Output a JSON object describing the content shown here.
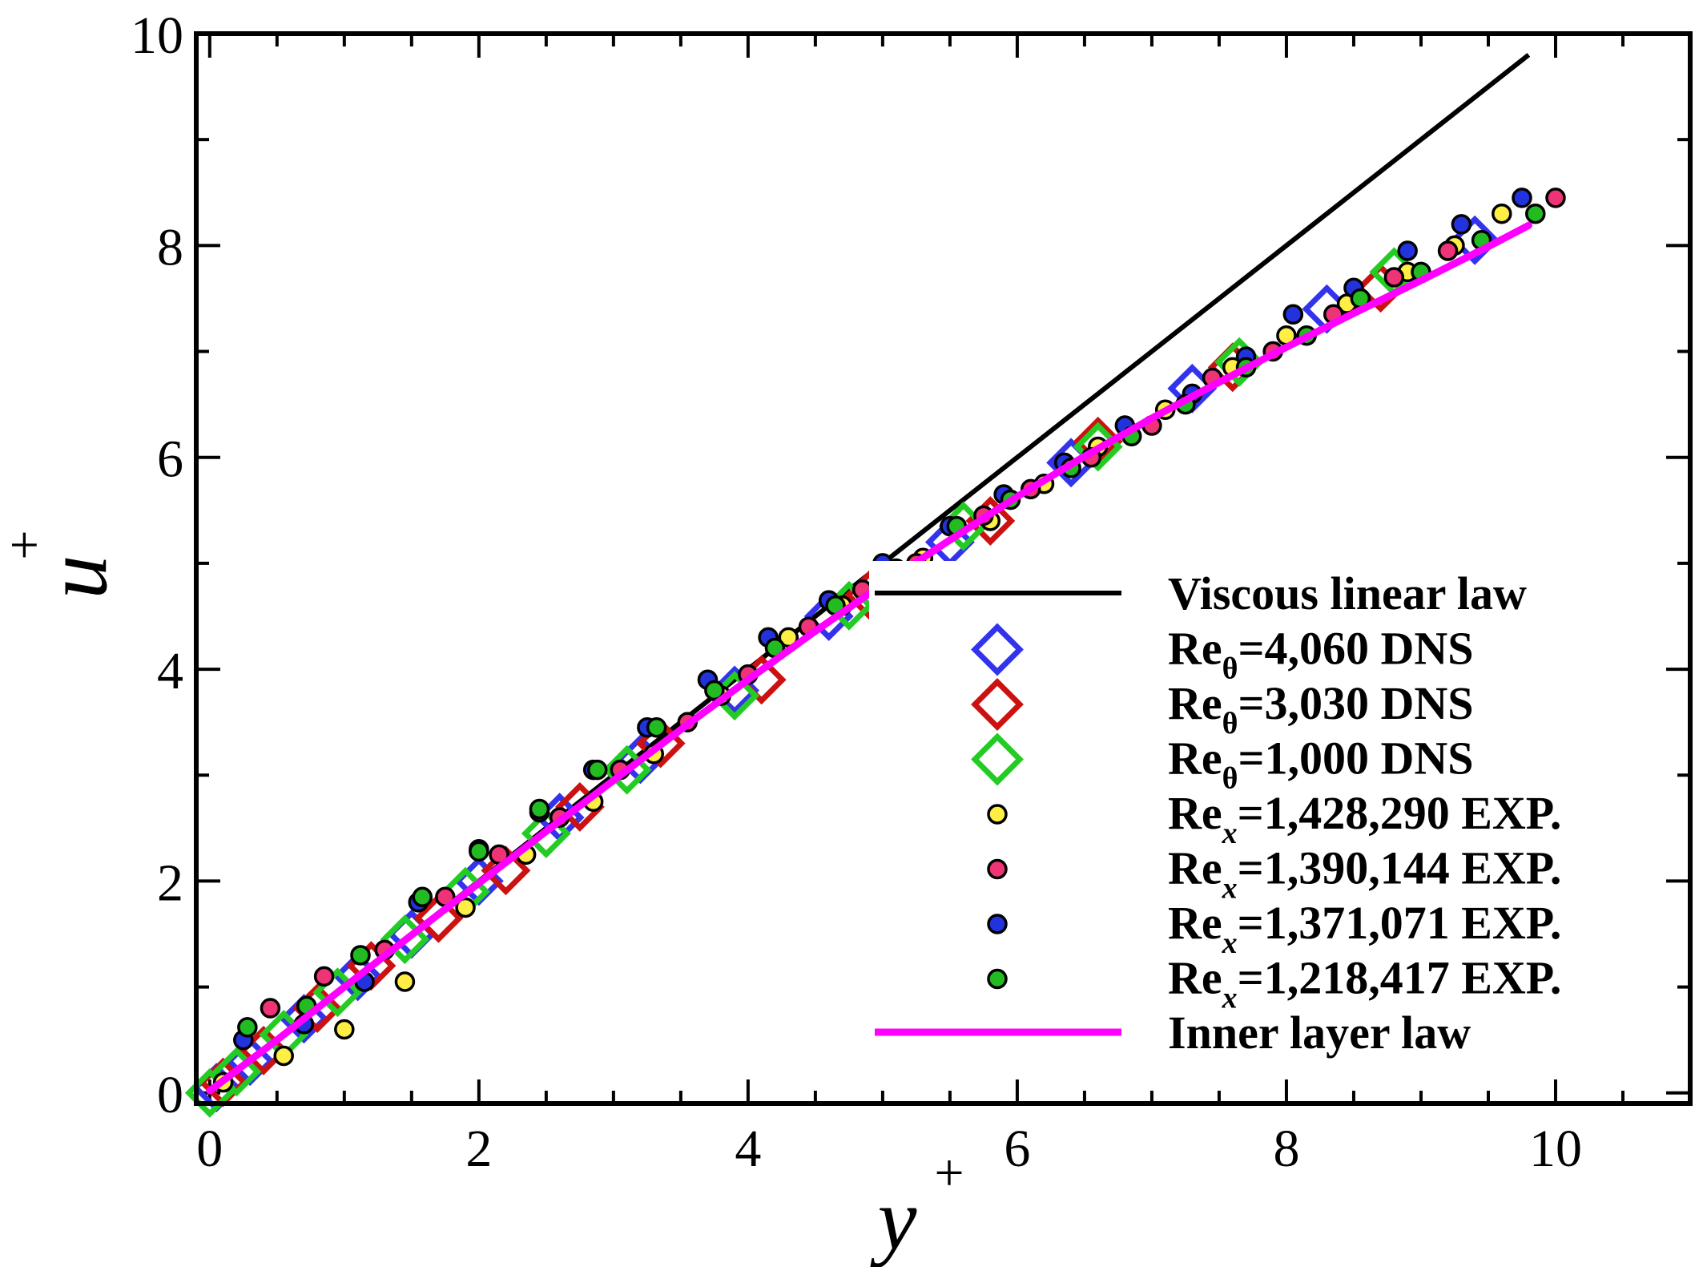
{
  "chart_data": {
    "type": "scatter",
    "xlabel": "y",
    "xlabel_sup": "+",
    "ylabel": "u",
    "ylabel_sup": "+",
    "xlim": [
      -0.1,
      11
    ],
    "ylim": [
      -0.1,
      10
    ],
    "x_ticks": [
      0,
      2,
      4,
      6,
      8,
      10
    ],
    "x_tick_labels": [
      "0",
      "2",
      "4",
      "6",
      "8",
      "10"
    ],
    "y_ticks": [
      0,
      2,
      4,
      6,
      8,
      10
    ],
    "y_tick_labels": [
      "0",
      "2",
      "4",
      "6",
      "8",
      "10"
    ],
    "x_minor_step": 0.5,
    "y_minor_step": 1,
    "legend_position": "lower-right",
    "series": [
      {
        "name": "Viscous linear law",
        "kind": "line",
        "color": "#000000",
        "x": [
          0,
          9.8
        ],
        "y": [
          0,
          9.8
        ]
      },
      {
        "name": "Inner layer law",
        "kind": "line",
        "color": "#ff00ff",
        "x": [
          0,
          0.5,
          1,
          1.5,
          2,
          2.5,
          3,
          3.5,
          4,
          4.5,
          5,
          5.5,
          6,
          6.5,
          7,
          7.5,
          8,
          8.5,
          9,
          9.5,
          9.8
        ],
        "y": [
          0.02,
          0.5,
          1.0,
          1.49,
          1.98,
          2.47,
          2.95,
          3.43,
          3.9,
          4.36,
          4.8,
          5.22,
          5.63,
          6.01,
          6.37,
          6.71,
          7.04,
          7.36,
          7.67,
          7.99,
          8.19
        ]
      },
      {
        "name": "Reθ=4,060 DNS",
        "name_parts": [
          "Re",
          "θ",
          "=4,060 DNS"
        ],
        "kind": "diamond",
        "color": "#3333ee",
        "x": [
          0.05,
          0.3,
          0.7,
          1.1,
          1.5,
          2.0,
          2.6,
          3.2,
          3.9,
          4.6,
          5.5,
          6.4,
          7.3,
          8.3,
          9.4
        ],
        "y": [
          0.05,
          0.3,
          0.7,
          1.1,
          1.5,
          2.0,
          2.6,
          3.15,
          3.8,
          4.5,
          5.2,
          5.95,
          6.65,
          7.4,
          8.05
        ]
      },
      {
        "name": "Reθ=3,030 DNS",
        "name_parts": [
          "Re",
          "θ",
          "=3,030 DNS"
        ],
        "kind": "diamond",
        "color": "#cc1111",
        "x": [
          0.1,
          0.4,
          0.8,
          1.2,
          1.7,
          2.2,
          2.75,
          3.35,
          4.1,
          4.9,
          5.8,
          6.6,
          7.6,
          8.7
        ],
        "y": [
          0.1,
          0.4,
          0.8,
          1.2,
          1.65,
          2.1,
          2.7,
          3.3,
          3.9,
          4.7,
          5.4,
          6.15,
          6.85,
          7.6
        ]
      },
      {
        "name": "Reθ=1,000 DNS",
        "name_parts": [
          "Re",
          "θ",
          "=1,000 DNS"
        ],
        "kind": "diamond",
        "color": "#22cc22",
        "x": [
          0.0,
          0.2,
          0.55,
          0.95,
          1.45,
          1.9,
          2.5,
          3.1,
          3.9,
          4.75,
          5.6,
          6.6,
          7.65,
          8.8
        ],
        "y": [
          0.0,
          0.2,
          0.55,
          0.95,
          1.45,
          1.9,
          2.45,
          3.05,
          3.75,
          4.6,
          5.35,
          6.1,
          6.9,
          7.75
        ]
      },
      {
        "name": "Rex=1,428,290 EXP.",
        "name_parts": [
          "Re",
          "x",
          "=1,428,290 EXP."
        ],
        "kind": "dot",
        "color": "#ffee44",
        "x": [
          0.1,
          0.55,
          1.0,
          1.45,
          1.9,
          2.35,
          2.85,
          3.3,
          3.8,
          4.3,
          4.7,
          5.3,
          5.8,
          6.2,
          6.6,
          7.1,
          7.6,
          8.0,
          8.45,
          8.9,
          9.25,
          9.6
        ],
        "y": [
          0.1,
          0.35,
          0.6,
          1.05,
          1.75,
          2.25,
          2.75,
          3.2,
          3.75,
          4.3,
          4.6,
          5.05,
          5.4,
          5.75,
          6.1,
          6.45,
          6.85,
          7.15,
          7.45,
          7.75,
          8.0,
          8.3
        ]
      },
      {
        "name": "Rex=1,390,144 EXP.",
        "name_parts": [
          "Re",
          "x",
          "=1,390,144 EXP."
        ],
        "kind": "dot",
        "color": "#ee3377",
        "x": [
          0.45,
          0.85,
          1.3,
          1.75,
          2.15,
          2.6,
          3.05,
          3.55,
          4.0,
          4.45,
          4.85,
          5.25,
          5.75,
          6.1,
          6.55,
          7.0,
          7.45,
          7.9,
          8.35,
          8.8,
          9.2,
          10.0
        ],
        "y": [
          0.8,
          1.1,
          1.35,
          1.85,
          2.25,
          2.6,
          3.05,
          3.5,
          3.95,
          4.4,
          4.75,
          5.0,
          5.45,
          5.7,
          6.0,
          6.3,
          6.75,
          7.0,
          7.35,
          7.7,
          7.95,
          8.45
        ]
      },
      {
        "name": "Rex=1,371,071 EXP.",
        "name_parts": [
          "Re",
          "x",
          "=1,371,071 EXP."
        ],
        "kind": "dot",
        "color": "#2233dd",
        "x": [
          0.25,
          0.7,
          1.15,
          1.55,
          2.0,
          2.45,
          2.85,
          3.25,
          3.7,
          4.15,
          4.6,
          5.0,
          5.5,
          5.9,
          6.35,
          6.8,
          7.3,
          7.7,
          8.05,
          8.5,
          8.9,
          9.3,
          9.75
        ],
        "y": [
          0.5,
          0.65,
          1.05,
          1.8,
          2.3,
          2.65,
          3.05,
          3.45,
          3.9,
          4.3,
          4.65,
          5.0,
          5.35,
          5.65,
          5.95,
          6.3,
          6.6,
          6.95,
          7.35,
          7.6,
          7.95,
          8.2,
          8.45
        ]
      },
      {
        "name": "Rex=1,218,417 EXP.",
        "name_parts": [
          "Re",
          "x",
          "=1,218,417 EXP."
        ],
        "kind": "dot",
        "color": "#22bb22",
        "x": [
          0.28,
          0.72,
          1.12,
          1.58,
          2.0,
          2.45,
          2.88,
          3.32,
          3.75,
          4.2,
          4.65,
          5.1,
          5.55,
          5.95,
          6.4,
          6.85,
          7.25,
          7.7,
          8.15,
          8.55,
          9.0,
          9.45,
          9.85
        ],
        "y": [
          0.62,
          0.82,
          1.3,
          1.85,
          2.28,
          2.68,
          3.05,
          3.45,
          3.8,
          4.2,
          4.6,
          4.95,
          5.35,
          5.6,
          5.9,
          6.2,
          6.5,
          6.85,
          7.15,
          7.5,
          7.75,
          8.05,
          8.3
        ]
      }
    ]
  }
}
